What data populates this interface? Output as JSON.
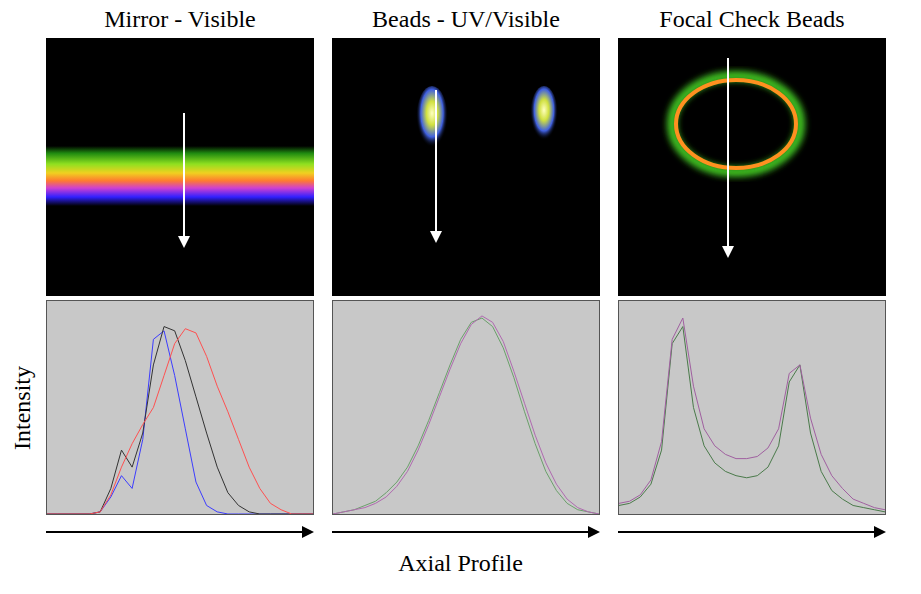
{
  "ylabel": "Intensity",
  "xlabel": "Axial Profile",
  "chart_data": [
    {
      "type": "line",
      "title": "Mirror - Visible",
      "x": [
        0,
        4,
        8,
        12,
        16,
        20,
        24,
        28,
        32,
        36,
        40,
        44,
        48,
        52,
        56,
        60,
        64,
        68,
        72,
        76,
        80,
        84,
        88,
        92,
        96,
        100
      ],
      "xlim": [
        0,
        100
      ],
      "ylim": [
        0,
        100
      ],
      "tick_labels": false,
      "grid": false,
      "series": [
        {
          "color": "#3c3cff",
          "values": [
            0,
            0,
            0,
            0,
            0,
            1,
            8,
            18,
            12,
            35,
            82,
            86,
            65,
            40,
            15,
            4,
            1,
            0,
            0,
            0,
            0,
            0,
            0,
            0,
            0,
            0
          ]
        },
        {
          "color": "#333333",
          "values": [
            0,
            0,
            0,
            0,
            0,
            1,
            12,
            30,
            22,
            38,
            70,
            88,
            86,
            72,
            55,
            38,
            22,
            10,
            4,
            1,
            0,
            0,
            0,
            0,
            0,
            0
          ]
        },
        {
          "color": "#ff5050",
          "values": [
            0,
            0,
            0,
            0,
            0,
            1,
            9,
            22,
            33,
            42,
            50,
            65,
            80,
            87,
            85,
            74,
            60,
            48,
            35,
            22,
            12,
            5,
            2,
            0,
            0,
            0
          ]
        }
      ]
    },
    {
      "type": "line",
      "title": "Beads - UV/Visible",
      "x": [
        0,
        4,
        8,
        12,
        16,
        20,
        24,
        28,
        32,
        36,
        40,
        44,
        48,
        52,
        56,
        60,
        64,
        68,
        72,
        76,
        80,
        84,
        88,
        92,
        96,
        100
      ],
      "xlim": [
        0,
        100
      ],
      "ylim": [
        0,
        100
      ],
      "tick_labels": false,
      "grid": false,
      "series": [
        {
          "color": "#6aa06a",
          "values": [
            0,
            1,
            2,
            4,
            6,
            10,
            15,
            22,
            32,
            44,
            57,
            70,
            82,
            90,
            92,
            88,
            78,
            64,
            48,
            33,
            20,
            11,
            5,
            2,
            1,
            0
          ]
        },
        {
          "color": "#b06ab0",
          "values": [
            0,
            1,
            2,
            3,
            5,
            8,
            13,
            20,
            30,
            42,
            55,
            68,
            80,
            89,
            93,
            90,
            81,
            67,
            52,
            37,
            24,
            14,
            7,
            3,
            1,
            0
          ]
        }
      ]
    },
    {
      "type": "line",
      "title": "Focal Check Beads",
      "x": [
        0,
        4,
        8,
        12,
        16,
        20,
        24,
        28,
        32,
        36,
        40,
        44,
        48,
        52,
        56,
        60,
        64,
        68,
        72,
        76,
        80,
        84,
        88,
        92,
        96,
        100
      ],
      "xlim": [
        0,
        100
      ],
      "ylim": [
        0,
        100
      ],
      "tick_labels": false,
      "grid": false,
      "series": [
        {
          "color": "#4a7a4a",
          "values": [
            4,
            5,
            8,
            14,
            30,
            80,
            88,
            50,
            32,
            24,
            20,
            18,
            17,
            18,
            22,
            32,
            62,
            70,
            38,
            20,
            11,
            7,
            4,
            3,
            2,
            1
          ]
        },
        {
          "color": "#a060a0",
          "values": [
            5,
            6,
            9,
            16,
            34,
            82,
            92,
            60,
            40,
            32,
            28,
            26,
            26,
            27,
            31,
            40,
            66,
            70,
            45,
            28,
            18,
            12,
            7,
            5,
            3,
            2
          ]
        }
      ]
    }
  ]
}
